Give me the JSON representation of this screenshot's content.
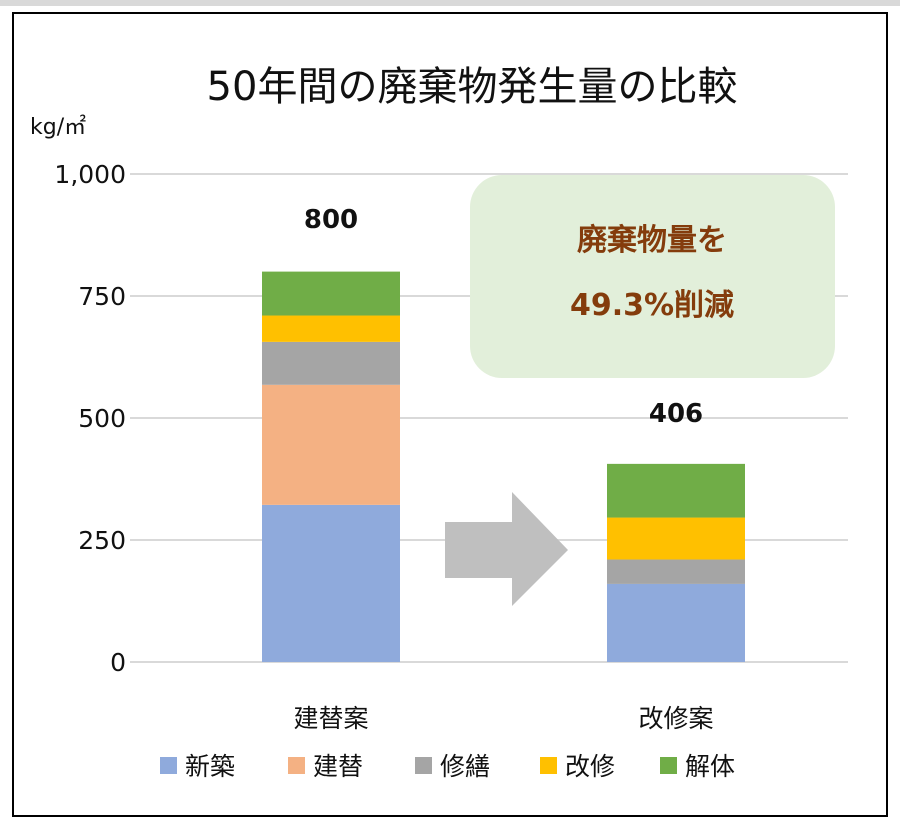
{
  "chart_data": {
    "type": "bar",
    "stacked": true,
    "title": "50年間の廃棄物発生量の比較",
    "unit": "kg/㎡",
    "categories": [
      "建替案",
      "改修案"
    ],
    "series": [
      {
        "name": "新築",
        "color": "#8faadc",
        "values": [
          322,
          160
        ]
      },
      {
        "name": "建替",
        "color": "#f4b183",
        "values": [
          246,
          0
        ]
      },
      {
        "name": "修繕",
        "color": "#a5a5a5",
        "values": [
          88,
          50
        ]
      },
      {
        "name": "改修",
        "color": "#ffc000",
        "values": [
          54,
          86
        ]
      },
      {
        "name": "解体",
        "color": "#70ad47",
        "values": [
          90,
          110
        ]
      }
    ],
    "totals": [
      "800",
      "406"
    ],
    "ylim": [
      0,
      1000
    ],
    "yticks": [
      0,
      250,
      500,
      750,
      1000
    ],
    "ytick_labels": [
      "0",
      "250",
      "500",
      "750",
      "1,000"
    ],
    "grid": true,
    "legend_position": "bottom",
    "annotation": {
      "line1": "廃棄物量を",
      "line2": "49.3%削減",
      "background": "#e2efda",
      "text_color": "#843c0c"
    },
    "arrow": {
      "color": "#bfbfbf",
      "direction": "right"
    }
  }
}
